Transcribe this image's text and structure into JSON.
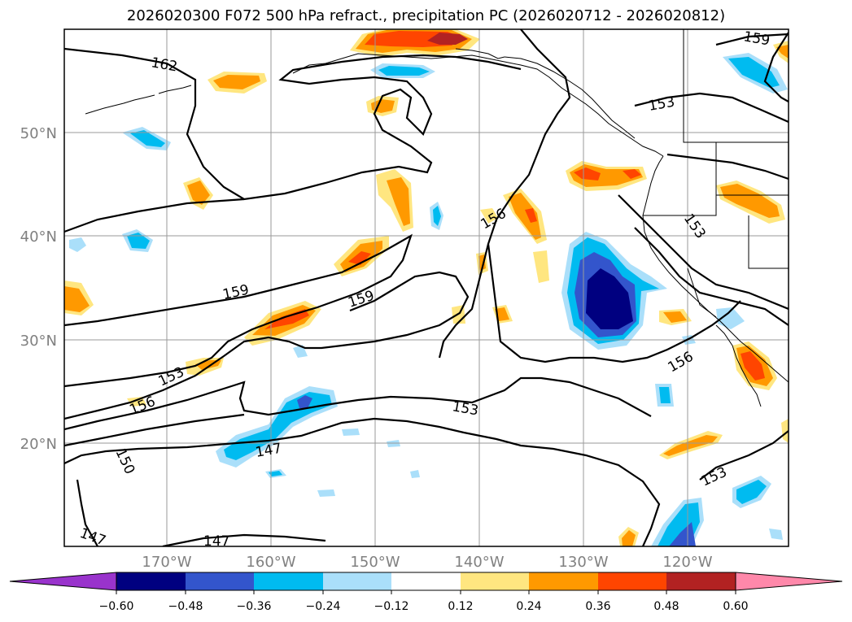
{
  "title": "2026020300 F072 500 hPa refract., precipitation PC (2026020712 - 2026020812)",
  "colors": {
    "ocean": "#ffffff",
    "grid": "#9a9a9a",
    "coast": "#000000",
    "contour": "#000000"
  },
  "map": {
    "lon_ticks": [
      {
        "label": "170°W"
      },
      {
        "label": "160°W"
      },
      {
        "label": "150°W"
      },
      {
        "label": "140°W"
      },
      {
        "label": "130°W"
      },
      {
        "label": "120°W"
      }
    ],
    "lat_ticks": [
      {
        "label": "50°N"
      },
      {
        "label": "40°N"
      },
      {
        "label": "30°N"
      },
      {
        "label": "20°N"
      }
    ],
    "contour_labels": [
      "162",
      "159",
      "159",
      "159",
      "156",
      "156",
      "156",
      "153",
      "153",
      "153",
      "153",
      "153",
      "150",
      "147",
      "147",
      "147"
    ]
  },
  "colorbar": {
    "ticks": [
      "−0.60",
      "−0.48",
      "−0.36",
      "−0.24",
      "−0.12",
      "0.12",
      "0.24",
      "0.36",
      "0.48",
      "0.60"
    ],
    "colors": [
      "#9933cc",
      "#000080",
      "#3355cc",
      "#00bbf0",
      "#aadffa",
      "#ffffff",
      "#ffe680",
      "#ff9900",
      "#ff4500",
      "#b22222",
      "#ff88aa"
    ]
  }
}
